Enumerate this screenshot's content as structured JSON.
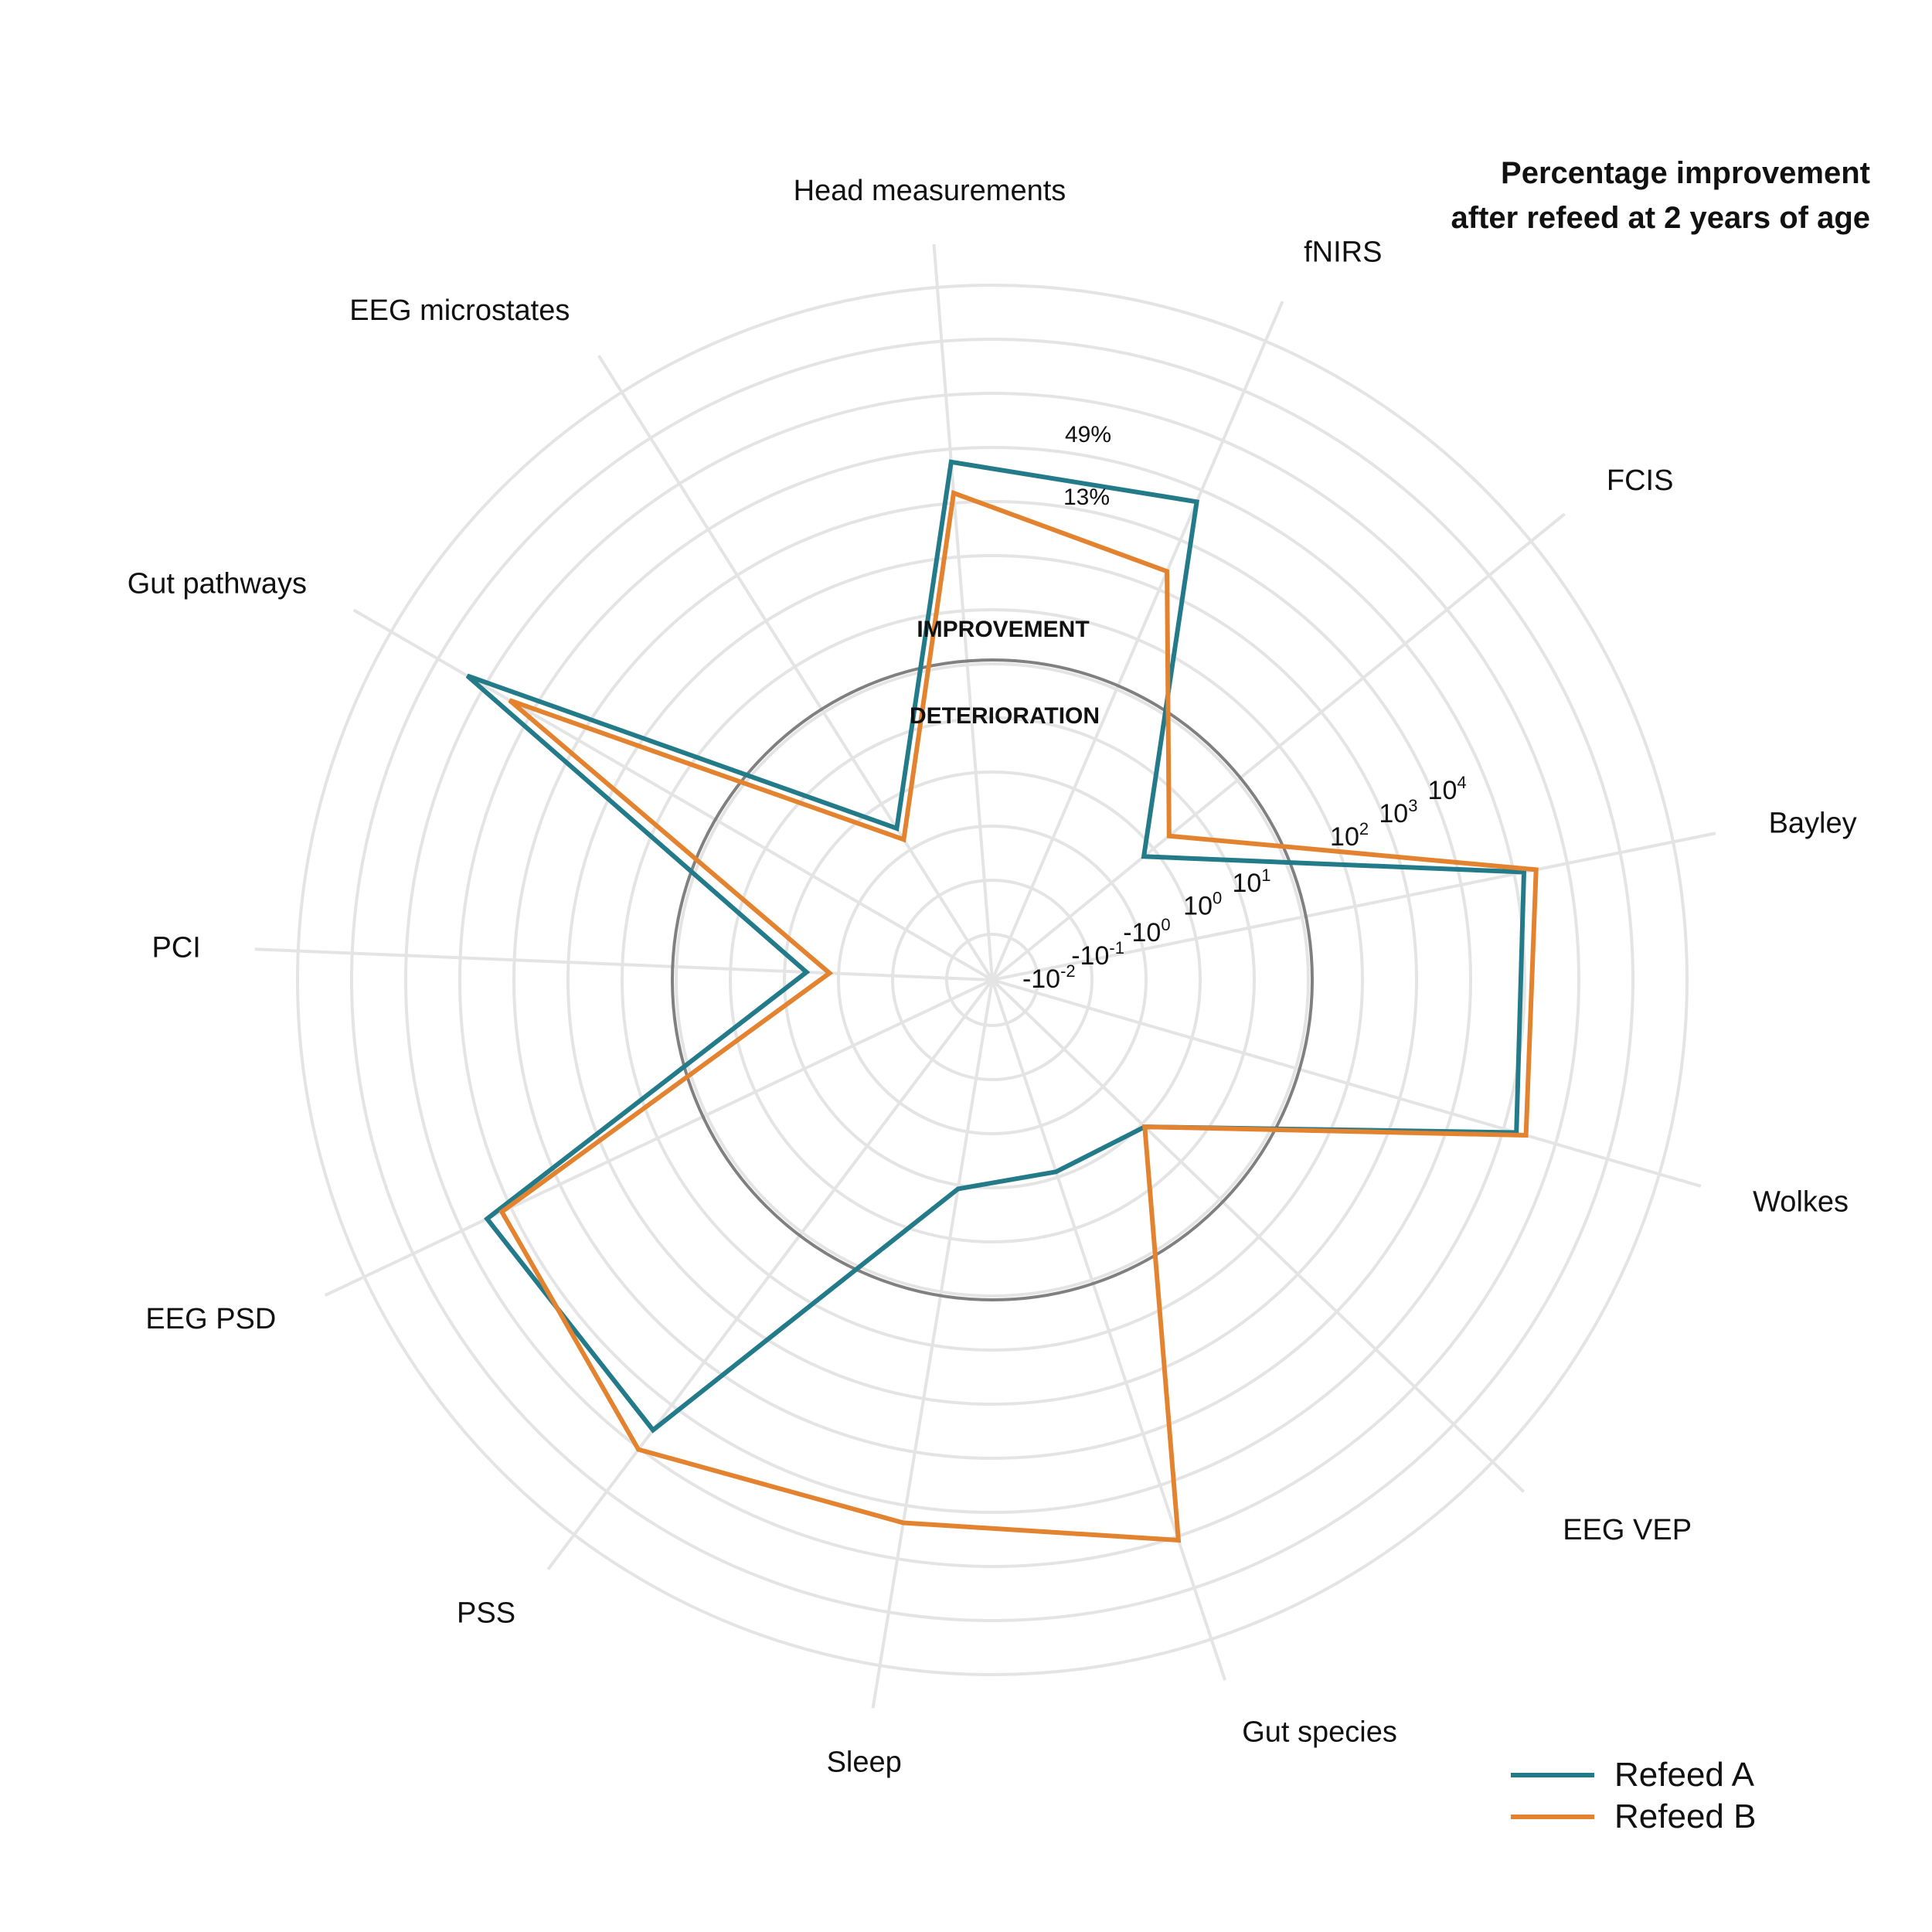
{
  "title": [
    "Percentage improvement",
    "after refeed at 2 years of age"
  ],
  "zone_labels": {
    "improvement": "IMPROVEMENT",
    "deterioration": "DETERIORATION"
  },
  "annotations": [
    "49%",
    "13%"
  ],
  "legend": [
    {
      "name": "Refeed A",
      "color": "#237b8a"
    },
    {
      "name": "Refeed B",
      "color": "#e3832f"
    }
  ],
  "colors": {
    "grid": "#e4e4e4",
    "zero_ring": "#808080"
  },
  "chart_data": {
    "type": "radar",
    "title": "Percentage improvement after refeed at 2 years of age",
    "scale": "symmetric-log",
    "axis_ticks": [
      {
        "base": "-10",
        "exp": "-2"
      },
      {
        "base": "-10",
        "exp": "-1"
      },
      {
        "base": "-10",
        "exp": "0"
      },
      {
        "base": "10",
        "exp": "0"
      },
      {
        "base": "10",
        "exp": "1"
      },
      {
        "base": "10",
        "exp": "2"
      },
      {
        "base": "10",
        "exp": "3"
      },
      {
        "base": "10",
        "exp": "4"
      }
    ],
    "categories": [
      "Bayley",
      "FCIS",
      "fNIRS",
      "Head measurements",
      "EEG microstates",
      "Gut pathways",
      "PCI",
      "EEG PSD",
      "PSS",
      "Sleep",
      "Gut species",
      "EEG VEP",
      "Wolkes"
    ],
    "series": [
      {
        "name": "Refeed A",
        "values": [
          130,
          -0.2,
          50,
          49,
          -0.4,
          2000,
          -0.3,
          260,
          320,
          -0.1,
          -0.15,
          -0.1,
          150
        ]
      },
      {
        "name": "Refeed B",
        "values": [
          220,
          -0.05,
          2,
          13,
          -0.7,
          250,
          -0.8,
          130,
          900,
          180,
          1000,
          -0.1,
          230
        ]
      }
    ],
    "grid": true,
    "legend_position": "bottom-right"
  }
}
